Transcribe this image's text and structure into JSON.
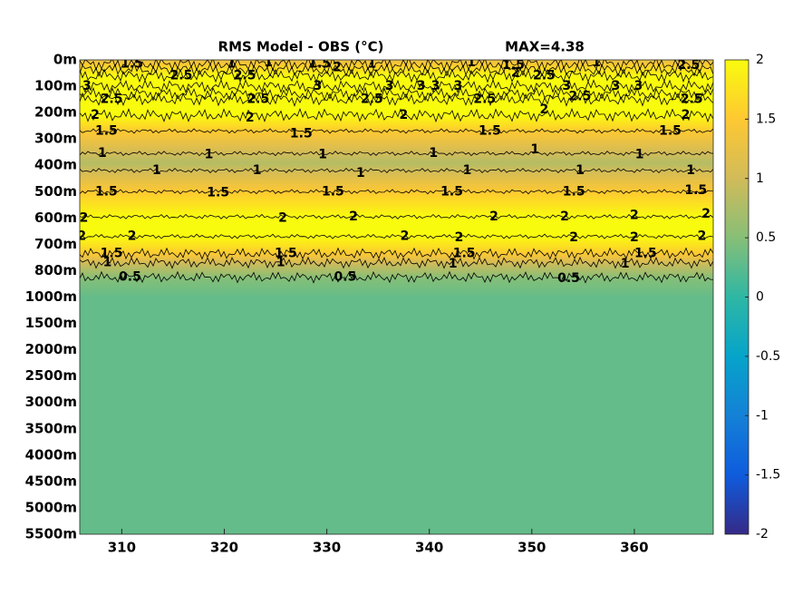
{
  "chart_data": {
    "type": "heatmap",
    "title": "RMS Model - OBS (°C)",
    "annotation": "MAX=4.38",
    "xlim": [
      305.9,
      367.7
    ],
    "xticks": [
      310,
      320,
      330,
      340,
      350,
      360
    ],
    "y_categories": [
      "0m",
      "100m",
      "200m",
      "300m",
      "400m",
      "500m",
      "600m",
      "700m",
      "800m",
      "1000m",
      "1500m",
      "2000m",
      "2500m",
      "3000m",
      "3500m",
      "4000m",
      "4500m",
      "5000m",
      "5500m"
    ],
    "profile_y": [
      0,
      0.15,
      0.6,
      1.0,
      1.25,
      1.5,
      2.1,
      2.7,
      3.55,
      3.9,
      4.2,
      5.0,
      5.95,
      6.35,
      6.7,
      7.35,
      7.7,
      8.25,
      9,
      18
    ],
    "profile_values": [
      1.2,
      1.5,
      2.5,
      3.0,
      3.1,
      2.5,
      2.0,
      1.5,
      1.0,
      0.8,
      1.0,
      1.5,
      2.0,
      2.3,
      2.0,
      1.5,
      1.0,
      0.5,
      0.3,
      0.3
    ],
    "clim": [
      -2,
      2
    ],
    "cticks": [
      -2,
      -1.5,
      -1,
      -0.5,
      0,
      0.5,
      1,
      1.5,
      2
    ],
    "colormap": "parula",
    "contour_levels": [
      0.5,
      1,
      1.5,
      2,
      2.5,
      3
    ],
    "contour_labels": [
      {
        "x": 311,
        "y": 0.15,
        "value": 1.5
      },
      {
        "x": 320.7,
        "y": 0.15,
        "value": 1
      },
      {
        "x": 324.3,
        "y": 0.1,
        "value": 1
      },
      {
        "x": 329.3,
        "y": 0.15,
        "value": 1.5
      },
      {
        "x": 331,
        "y": 0.3,
        "value": 2
      },
      {
        "x": 334.4,
        "y": 0.15,
        "value": 1
      },
      {
        "x": 344.1,
        "y": 0.1,
        "value": 1
      },
      {
        "x": 348.2,
        "y": 0.2,
        "value": 1.5
      },
      {
        "x": 356.3,
        "y": 0.1,
        "value": 1
      },
      {
        "x": 365.3,
        "y": 0.2,
        "value": 2.5
      },
      {
        "x": 315.8,
        "y": 0.6,
        "value": 2.5
      },
      {
        "x": 322,
        "y": 0.6,
        "value": 2.5
      },
      {
        "x": 348.4,
        "y": 0.5,
        "value": 2
      },
      {
        "x": 351.2,
        "y": 0.6,
        "value": 2.5
      },
      {
        "x": 306.6,
        "y": 1.0,
        "value": 3
      },
      {
        "x": 329.1,
        "y": 1.0,
        "value": 3
      },
      {
        "x": 336.1,
        "y": 1.0,
        "value": 3
      },
      {
        "x": 339.2,
        "y": 1.0,
        "value": 3
      },
      {
        "x": 340.6,
        "y": 1.0,
        "value": 3
      },
      {
        "x": 342.8,
        "y": 1.0,
        "value": 3
      },
      {
        "x": 353.4,
        "y": 1.0,
        "value": 3
      },
      {
        "x": 358.2,
        "y": 1.0,
        "value": 3
      },
      {
        "x": 360.4,
        "y": 1.0,
        "value": 3
      },
      {
        "x": 309,
        "y": 1.5,
        "value": 2.5
      },
      {
        "x": 323.3,
        "y": 1.5,
        "value": 2.5
      },
      {
        "x": 334.4,
        "y": 1.5,
        "value": 2.5
      },
      {
        "x": 345.4,
        "y": 1.5,
        "value": 2.5
      },
      {
        "x": 354.7,
        "y": 1.4,
        "value": 2.5
      },
      {
        "x": 365.6,
        "y": 1.5,
        "value": 2.5
      },
      {
        "x": 307.4,
        "y": 2.1,
        "value": 2
      },
      {
        "x": 322.5,
        "y": 2.2,
        "value": 2
      },
      {
        "x": 337.5,
        "y": 2.1,
        "value": 2
      },
      {
        "x": 351.2,
        "y": 1.9,
        "value": 2
      },
      {
        "x": 365,
        "y": 2.1,
        "value": 2
      },
      {
        "x": 308.5,
        "y": 2.7,
        "value": 1.5
      },
      {
        "x": 327.5,
        "y": 2.8,
        "value": 1.5
      },
      {
        "x": 345.9,
        "y": 2.7,
        "value": 1.5
      },
      {
        "x": 363.5,
        "y": 2.7,
        "value": 1.5
      },
      {
        "x": 308.1,
        "y": 3.55,
        "value": 1
      },
      {
        "x": 318.5,
        "y": 3.6,
        "value": 1
      },
      {
        "x": 329.6,
        "y": 3.6,
        "value": 1
      },
      {
        "x": 340.4,
        "y": 3.55,
        "value": 1
      },
      {
        "x": 350.3,
        "y": 3.4,
        "value": 1
      },
      {
        "x": 360.5,
        "y": 3.6,
        "value": 1
      },
      {
        "x": 313.4,
        "y": 4.2,
        "value": 1
      },
      {
        "x": 323.2,
        "y": 4.2,
        "value": 1
      },
      {
        "x": 333.3,
        "y": 4.3,
        "value": 1
      },
      {
        "x": 343.7,
        "y": 4.2,
        "value": 1
      },
      {
        "x": 354.7,
        "y": 4.2,
        "value": 1
      },
      {
        "x": 365.5,
        "y": 4.2,
        "value": 1
      },
      {
        "x": 308.5,
        "y": 5.0,
        "value": 1.5
      },
      {
        "x": 319.4,
        "y": 5.05,
        "value": 1.5
      },
      {
        "x": 330.6,
        "y": 5.0,
        "value": 1.5
      },
      {
        "x": 342.2,
        "y": 5.0,
        "value": 1.5
      },
      {
        "x": 354.1,
        "y": 5.0,
        "value": 1.5
      },
      {
        "x": 366,
        "y": 4.95,
        "value": 1.5
      },
      {
        "x": 306.3,
        "y": 6.0,
        "value": 2
      },
      {
        "x": 325.7,
        "y": 6.0,
        "value": 2
      },
      {
        "x": 332.6,
        "y": 5.95,
        "value": 2
      },
      {
        "x": 346.3,
        "y": 5.95,
        "value": 2
      },
      {
        "x": 353.2,
        "y": 5.95,
        "value": 2
      },
      {
        "x": 360,
        "y": 5.9,
        "value": 2
      },
      {
        "x": 367,
        "y": 5.85,
        "value": 2
      },
      {
        "x": 306.1,
        "y": 6.7,
        "value": 2
      },
      {
        "x": 311,
        "y": 6.7,
        "value": 2
      },
      {
        "x": 337.6,
        "y": 6.7,
        "value": 2
      },
      {
        "x": 342.9,
        "y": 6.75,
        "value": 2
      },
      {
        "x": 354.1,
        "y": 6.75,
        "value": 2
      },
      {
        "x": 360,
        "y": 6.75,
        "value": 2
      },
      {
        "x": 366.6,
        "y": 6.7,
        "value": 2
      },
      {
        "x": 309,
        "y": 7.35,
        "value": 1.5
      },
      {
        "x": 326,
        "y": 7.35,
        "value": 1.5
      },
      {
        "x": 343.4,
        "y": 7.35,
        "value": 1.5
      },
      {
        "x": 361.1,
        "y": 7.35,
        "value": 1.5
      },
      {
        "x": 308.6,
        "y": 7.7,
        "value": 1
      },
      {
        "x": 325.5,
        "y": 7.7,
        "value": 1
      },
      {
        "x": 342.3,
        "y": 7.75,
        "value": 1
      },
      {
        "x": 359.1,
        "y": 7.75,
        "value": 1
      },
      {
        "x": 310.8,
        "y": 8.25,
        "value": 0.5
      },
      {
        "x": 331.8,
        "y": 8.25,
        "value": 0.5
      },
      {
        "x": 353.6,
        "y": 8.3,
        "value": 0.5
      }
    ]
  }
}
